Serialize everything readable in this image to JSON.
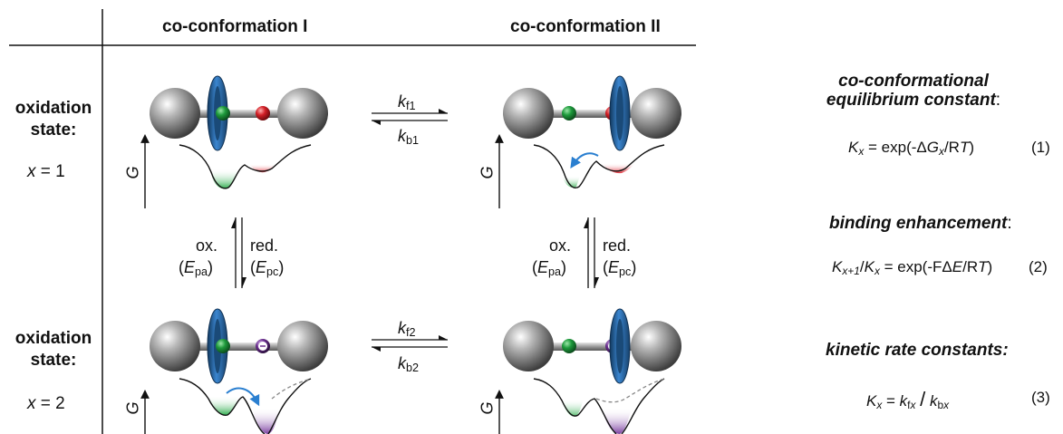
{
  "headers": {
    "col1": "co-conformation I",
    "col2": "co-conformation II"
  },
  "rows": [
    {
      "label_line1": "oxidation",
      "label_line2": "state:",
      "x_var": "x",
      "x_eq": " = 1"
    },
    {
      "label_line1": "oxidation",
      "label_line2": "state:",
      "x_var": "x",
      "x_eq": " = 2"
    }
  ],
  "rates": {
    "f1": {
      "k": "k",
      "sub": "f1"
    },
    "b1": {
      "k": "k",
      "sub": "b1"
    },
    "f2": {
      "k": "k",
      "sub": "f2"
    },
    "b2": {
      "k": "k",
      "sub": "b2"
    }
  },
  "redox": {
    "ox": "ox.",
    "red": "red.",
    "E": "E",
    "pa": "pa",
    "pc": "pc"
  },
  "axis_label": "G",
  "equations": {
    "eq1_title_line1": "co-conformational",
    "eq1_title_line2": "equilibrium constant",
    "eq1_title_colon": ":",
    "eq1_number": "(1)",
    "eq2_title": "binding enhancement",
    "eq2_title_colon": ":",
    "eq2_number": "(2)",
    "eq3_title": "kinetic rate constants:",
    "eq3_number": "(3)"
  },
  "colors": {
    "stopper": "#8c8c8c",
    "ring": "#2f6fb0",
    "station_green": "#1e9a3c",
    "station_red": "#d21f26",
    "station_purple": "#6b2f8f",
    "well_green": "#2bab4a",
    "well_red": "#e0303a",
    "well_purple": "#7a3ea0",
    "arrow_blue": "#2a7fd0"
  }
}
